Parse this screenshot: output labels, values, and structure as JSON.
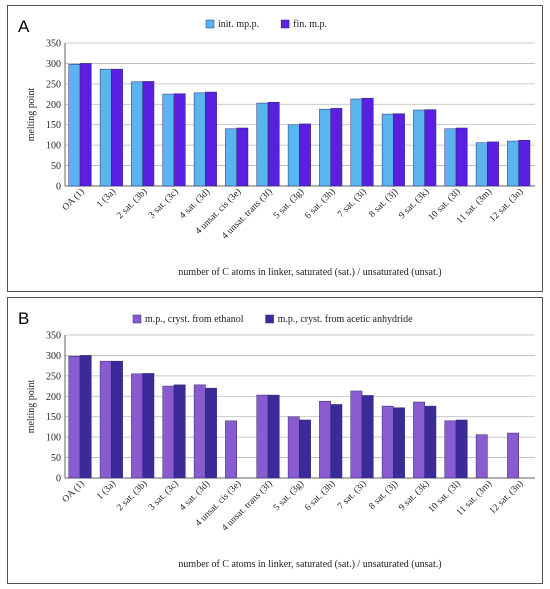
{
  "chart_data": [
    {
      "panel_label": "A",
      "type": "bar",
      "categories": [
        "OA (1)",
        "1 (3a)",
        "2 sat. (3b)",
        "3 sat. (3c)",
        "4 sat. (3d)",
        "4 unsat. cis (3e)",
        "4 unsat. trans (3f)",
        "5 sat. (3g)",
        "6 sat. (3h)",
        "7 sat. (3i)",
        "8 sat. (3j)",
        "9 sat. (3k)",
        "10 sat. (3l)",
        "11 sat. (3m)",
        "12 sat. (3n)"
      ],
      "series": [
        {
          "name": "init. mp.p.",
          "color": "#5ab4f0",
          "values": [
            298,
            286,
            255,
            225,
            228,
            140,
            203,
            150,
            188,
            213,
            176,
            186,
            140,
            106,
            110
          ]
        },
        {
          "name": "fin. m.p.",
          "color": "#5a1fe0",
          "values": [
            300,
            286,
            256,
            226,
            230,
            142,
            205,
            152,
            190,
            215,
            177,
            187,
            142,
            108,
            112
          ]
        }
      ],
      "xlabel": "number of C atoms in linker, saturated (sat.) / unsaturated (unsat.)",
      "ylabel": "melting point",
      "ylim": [
        0,
        350
      ],
      "yticks": [
        0,
        50,
        100,
        150,
        200,
        250,
        300,
        350
      ],
      "grid": "horizontal",
      "legend": "top-center"
    },
    {
      "panel_label": "B",
      "type": "bar",
      "categories": [
        "OA (1)",
        "1 (3a)",
        "2 sat. (3b)",
        "3 sat. (3c)",
        "4 sat. (3d)",
        "4 unsat. cis (3e)",
        "4 unsat. trans (3f)",
        "5 sat. (3g)",
        "6 sat. (3h)",
        "7 sat. (3i)",
        "8 sat. (3j)",
        "9 sat. (3k)",
        "10 sat. (3l)",
        "11 sat. (3m)",
        "12 sat. (3n)"
      ],
      "series": [
        {
          "name": "m.p., cryst. from ethanol",
          "color": "#8a5ad0",
          "values": [
            298,
            286,
            255,
            225,
            228,
            140,
            203,
            150,
            188,
            213,
            176,
            186,
            140,
            106,
            110
          ]
        },
        {
          "name": "m.p., cryst. from acetic anhydride",
          "color": "#3a2a9a",
          "values": [
            300,
            286,
            256,
            228,
            220,
            0,
            203,
            142,
            180,
            202,
            172,
            176,
            142,
            0,
            0
          ]
        }
      ],
      "xlabel": "number of C atoms in linker, saturated (sat.) / unsaturated (unsat.)",
      "ylabel": "melting point",
      "ylim": [
        0,
        350
      ],
      "yticks": [
        0,
        50,
        100,
        150,
        200,
        250,
        300,
        350
      ],
      "grid": "horizontal",
      "legend": "top-center"
    }
  ]
}
